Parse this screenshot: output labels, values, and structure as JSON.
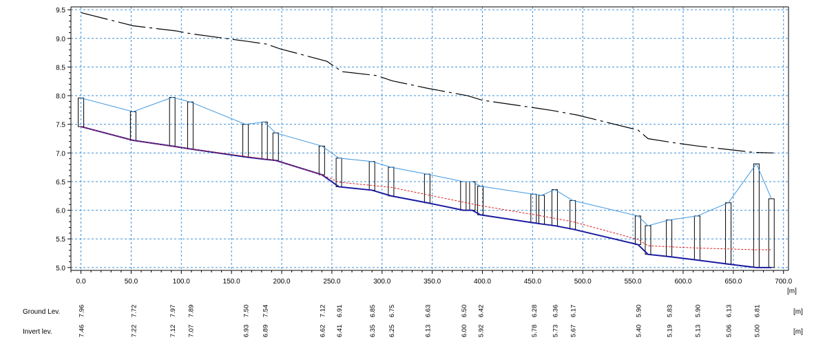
{
  "chart_data": {
    "type": "line",
    "xlim": [
      -10,
      705
    ],
    "ylim": [
      4.95,
      9.55
    ],
    "x_ticks": [
      "0.0",
      "50.0",
      "100.0",
      "150.0",
      "200.0",
      "250.0",
      "300.0",
      "350.0",
      "400.0",
      "450.0",
      "500.0",
      "550.0",
      "600.0",
      "650.0",
      "700.0"
    ],
    "y_ticks": [
      "5.0",
      "5.5",
      "6.0",
      "6.5",
      "7.0",
      "7.5",
      "8.0",
      "8.5",
      "9.0",
      "9.5"
    ],
    "x_unit": "[m]",
    "grid": true,
    "ground_line": {
      "x": [
        0,
        52,
        95,
        110,
        165,
        185,
        198,
        245,
        260,
        295,
        310,
        345,
        385,
        400,
        455,
        470,
        495,
        555,
        565,
        590,
        615,
        650,
        670,
        690
      ],
      "y": [
        9.45,
        9.22,
        9.13,
        9.08,
        8.95,
        8.9,
        8.82,
        8.6,
        8.42,
        8.35,
        8.26,
        8.13,
        8.0,
        7.92,
        7.78,
        7.74,
        7.66,
        7.4,
        7.25,
        7.18,
        7.12,
        7.05,
        7.01,
        7.0
      ]
    },
    "manholes": [
      {
        "x": 0,
        "ground": "7.96",
        "invert": "7.46"
      },
      {
        "x": 52,
        "ground": "7.72",
        "invert": "7.22"
      },
      {
        "x": 91,
        "ground": "7.97",
        "invert": "7.12"
      },
      {
        "x": 109,
        "ground": "7.89",
        "invert": "7.07"
      },
      {
        "x": 164,
        "ground": "7.50",
        "invert": "6.93"
      },
      {
        "x": 183,
        "ground": "7.54",
        "invert": "6.89"
      },
      {
        "x": 194,
        "ground": "7.35",
        "invert": "6.87"
      },
      {
        "x": 240,
        "ground": "7.12",
        "invert": "6.62"
      },
      {
        "x": 257,
        "ground": "6.91",
        "invert": "6.41"
      },
      {
        "x": 290,
        "ground": "6.85",
        "invert": "6.35"
      },
      {
        "x": 309,
        "ground": "6.75",
        "invert": "6.25"
      },
      {
        "x": 345,
        "ground": "6.63",
        "invert": "6.13"
      },
      {
        "x": 381,
        "ground": "6.50",
        "invert": "6.00"
      },
      {
        "x": 390,
        "ground": "6.50",
        "invert": "6.00"
      },
      {
        "x": 398,
        "ground": "6.42",
        "invert": "5.92"
      },
      {
        "x": 451,
        "ground": "6.28",
        "invert": "5.78"
      },
      {
        "x": 459,
        "ground": "6.26",
        "invert": "5.76"
      },
      {
        "x": 472,
        "ground": "6.36",
        "invert": "5.73"
      },
      {
        "x": 490,
        "ground": "6.17",
        "invert": "5.67"
      },
      {
        "x": 555,
        "ground": "5.90",
        "invert": "5.40"
      },
      {
        "x": 565,
        "ground": "5.73",
        "invert": "5.23"
      },
      {
        "x": 586,
        "ground": "5.83",
        "invert": "5.19"
      },
      {
        "x": 614,
        "ground": "5.90",
        "invert": "5.13"
      },
      {
        "x": 645,
        "ground": "6.13",
        "invert": "5.06"
      },
      {
        "x": 673,
        "ground": "6.81",
        "invert": "5.00"
      },
      {
        "x": 688,
        "ground": "6.20",
        "invert": "5.00"
      }
    ],
    "water_line": {
      "x": [
        0,
        52,
        109,
        194,
        240,
        257,
        309,
        398,
        459,
        490,
        555,
        565,
        614,
        673,
        688
      ],
      "y": [
        7.46,
        7.22,
        7.07,
        6.87,
        6.62,
        6.49,
        6.4,
        6.08,
        5.9,
        5.8,
        5.49,
        5.38,
        5.34,
        5.31,
        5.31
      ]
    },
    "table_rows": [
      {
        "label": "Ground Lev.",
        "unit": "[m]",
        "labels": [
          {
            "x": 0,
            "text": "7.96"
          },
          {
            "x": 52,
            "text": "7.72"
          },
          {
            "x": 91,
            "text": "7.97"
          },
          {
            "x": 109,
            "text": "7.89"
          },
          {
            "x": 164,
            "text": "7.50"
          },
          {
            "x": 183,
            "text": "7.54"
          },
          {
            "x": 240,
            "text": "7.12"
          },
          {
            "x": 257,
            "text": "6.91"
          },
          {
            "x": 290,
            "text": "6.85"
          },
          {
            "x": 309,
            "text": "6.75"
          },
          {
            "x": 345,
            "text": "6.63"
          },
          {
            "x": 381,
            "text": "6.50"
          },
          {
            "x": 398,
            "text": "6.42"
          },
          {
            "x": 451,
            "text": "6.28"
          },
          {
            "x": 472,
            "text": "6.36"
          },
          {
            "x": 490,
            "text": "6.17"
          },
          {
            "x": 555,
            "text": "5.90"
          },
          {
            "x": 586,
            "text": "5.83"
          },
          {
            "x": 614,
            "text": "5.90"
          },
          {
            "x": 645,
            "text": "6.13"
          },
          {
            "x": 673,
            "text": "6.81"
          }
        ]
      },
      {
        "label": "Invert lev.",
        "unit": "[m]",
        "labels": [
          {
            "x": 0,
            "text": "7.46"
          },
          {
            "x": 52,
            "text": "7.22"
          },
          {
            "x": 91,
            "text": "7.12"
          },
          {
            "x": 109,
            "text": "7.07"
          },
          {
            "x": 164,
            "text": "6.93"
          },
          {
            "x": 183,
            "text": "6.89"
          },
          {
            "x": 240,
            "text": "6.62"
          },
          {
            "x": 257,
            "text": "6.41"
          },
          {
            "x": 290,
            "text": "6.35"
          },
          {
            "x": 309,
            "text": "6.25"
          },
          {
            "x": 345,
            "text": "6.13"
          },
          {
            "x": 381,
            "text": "6.00"
          },
          {
            "x": 398,
            "text": "5.92"
          },
          {
            "x": 451,
            "text": "5.78"
          },
          {
            "x": 472,
            "text": "5.73"
          },
          {
            "x": 490,
            "text": "5.67"
          },
          {
            "x": 555,
            "text": "5.40"
          },
          {
            "x": 586,
            "text": "5.19"
          },
          {
            "x": 614,
            "text": "5.13"
          },
          {
            "x": 645,
            "text": "5.06"
          },
          {
            "x": 673,
            "text": "5.00"
          }
        ]
      }
    ],
    "colors": {
      "grid": "#3a8fd8",
      "ground_line": "#000000",
      "pipe_crown": "#3c96e0",
      "invert": "#1a1aa0",
      "water_level": "#e02020",
      "manhole": "#000000"
    }
  }
}
